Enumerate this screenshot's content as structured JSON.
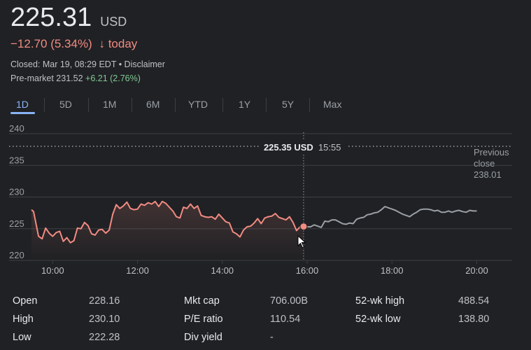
{
  "quote": {
    "price": "225.31",
    "currency": "USD",
    "change": "−12.70 (5.34%)",
    "change_arrow": "↓",
    "change_period": "today",
    "closed_text": "Closed: Mar 19, 08:29 EDT • Disclaimer",
    "premarket_label": "Pre-market 231.52",
    "premarket_change": "+6.21 (2.76%)"
  },
  "tabs": [
    {
      "label": "1D",
      "active": true
    },
    {
      "label": "5D"
    },
    {
      "label": "1M"
    },
    {
      "label": "6M"
    },
    {
      "label": "YTD"
    },
    {
      "label": "1Y"
    },
    {
      "label": "5Y"
    },
    {
      "label": "Max"
    }
  ],
  "chart_data": {
    "type": "line",
    "y_ticks": [
      "240",
      "235",
      "230",
      "225",
      "220"
    ],
    "x_ticks": [
      "10:00",
      "12:00",
      "14:00",
      "16:00",
      "18:00",
      "20:00"
    ],
    "ylim": [
      220,
      240
    ],
    "xlim": [
      "09:30",
      "20:50"
    ],
    "previous_close": 238.01,
    "previous_close_label": [
      "Previous",
      "close",
      "238.01"
    ],
    "hover_label": {
      "price": "225.35 USD",
      "time": "15:55"
    },
    "colors": {
      "regular": "#f28b82",
      "extended": "#9aa0a6",
      "grid": "#3c4043",
      "bg": "#202124"
    },
    "series": [
      {
        "name": "regular",
        "points": [
          [
            "09:30",
            228
          ],
          [
            "09:33",
            227.7
          ],
          [
            "09:40",
            223.8
          ],
          [
            "09:45",
            223.4
          ],
          [
            "09:50",
            225.1
          ],
          [
            "09:55",
            224.3
          ],
          [
            "10:00",
            223.8
          ],
          [
            "10:05",
            224.4
          ],
          [
            "10:10",
            224.6
          ],
          [
            "10:15",
            223.0
          ],
          [
            "10:20",
            223.6
          ],
          [
            "10:25",
            222.8
          ],
          [
            "10:30",
            223.1
          ],
          [
            "10:35",
            225.1
          ],
          [
            "10:40",
            225.0
          ],
          [
            "10:45",
            226.0
          ],
          [
            "10:50",
            225.5
          ],
          [
            "10:55",
            224.2
          ],
          [
            "11:00",
            224.0
          ],
          [
            "11:05",
            224.8
          ],
          [
            "11:10",
            224.9
          ],
          [
            "11:15",
            224.3
          ],
          [
            "11:20",
            224.8
          ],
          [
            "11:25",
            227.3
          ],
          [
            "11:30",
            228.8
          ],
          [
            "11:35",
            228.2
          ],
          [
            "11:40",
            228.6
          ],
          [
            "11:45",
            229.2
          ],
          [
            "11:50",
            228.2
          ],
          [
            "11:55",
            228.0
          ],
          [
            "12:00",
            228.1
          ],
          [
            "12:05",
            228.9
          ],
          [
            "12:10",
            228.7
          ],
          [
            "12:15",
            229.1
          ],
          [
            "12:20",
            228.9
          ],
          [
            "12:25",
            229.3
          ],
          [
            "12:30",
            228.5
          ],
          [
            "12:35",
            229.3
          ],
          [
            "12:40",
            229.0
          ],
          [
            "12:45",
            228.4
          ],
          [
            "12:50",
            227.8
          ],
          [
            "12:55",
            226.9
          ],
          [
            "13:00",
            226.7
          ],
          [
            "13:05",
            228.4
          ],
          [
            "13:10",
            228.2
          ],
          [
            "13:15",
            228.9
          ],
          [
            "13:20",
            228.2
          ],
          [
            "13:25",
            228.6
          ],
          [
            "13:30",
            227.1
          ],
          [
            "13:35",
            226.9
          ],
          [
            "13:40",
            226.8
          ],
          [
            "13:45",
            226.9
          ],
          [
            "13:50",
            226.5
          ],
          [
            "13:55",
            227.3
          ],
          [
            "14:00",
            226.7
          ],
          [
            "14:05",
            226.1
          ],
          [
            "14:10",
            225.9
          ],
          [
            "14:15",
            224.5
          ],
          [
            "14:20",
            224.2
          ],
          [
            "14:25",
            223.7
          ],
          [
            "14:30",
            224.8
          ],
          [
            "14:35",
            225.3
          ],
          [
            "14:40",
            225.4
          ],
          [
            "14:45",
            225.9
          ],
          [
            "14:50",
            226.6
          ],
          [
            "14:55",
            225.8
          ],
          [
            "15:00",
            226.7
          ],
          [
            "15:05",
            226.9
          ],
          [
            "15:10",
            227.0
          ],
          [
            "15:15",
            227.4
          ],
          [
            "15:20",
            226.8
          ],
          [
            "15:25",
            226.6
          ],
          [
            "15:30",
            226.4
          ],
          [
            "15:35",
            226.9
          ],
          [
            "15:40",
            226.0
          ],
          [
            "15:45",
            224.7
          ],
          [
            "15:50",
            225.3
          ],
          [
            "15:55",
            225.35
          ]
        ]
      },
      {
        "name": "extended",
        "points": [
          [
            "15:55",
            225.35
          ],
          [
            "16:00",
            225.3
          ],
          [
            "16:05",
            225.3
          ],
          [
            "16:10",
            225.6
          ],
          [
            "16:15",
            225.4
          ],
          [
            "16:20",
            225.2
          ],
          [
            "16:25",
            226.2
          ],
          [
            "16:30",
            226.1
          ],
          [
            "16:35",
            226.4
          ],
          [
            "16:40",
            226.4
          ],
          [
            "16:45",
            226.1
          ],
          [
            "16:50",
            225.8
          ],
          [
            "16:55",
            225.7
          ],
          [
            "17:00",
            225.9
          ],
          [
            "17:05",
            225.8
          ],
          [
            "17:10",
            226.5
          ],
          [
            "17:15",
            226.7
          ],
          [
            "17:20",
            226.8
          ],
          [
            "17:25",
            227.2
          ],
          [
            "17:30",
            227.3
          ],
          [
            "17:35",
            227.5
          ],
          [
            "17:40",
            227.6
          ],
          [
            "17:45",
            228.0
          ],
          [
            "17:50",
            228.5
          ],
          [
            "17:55",
            228.3
          ],
          [
            "18:00",
            228.1
          ],
          [
            "18:05",
            227.9
          ],
          [
            "18:10",
            227.6
          ],
          [
            "18:15",
            227.3
          ],
          [
            "18:20",
            227.1
          ],
          [
            "18:25",
            226.9
          ],
          [
            "18:30",
            227.3
          ],
          [
            "18:35",
            227.6
          ],
          [
            "18:40",
            228.0
          ],
          [
            "18:45",
            228.1
          ],
          [
            "18:50",
            228.1
          ],
          [
            "18:55",
            228.0
          ],
          [
            "19:00",
            227.8
          ],
          [
            "19:05",
            227.9
          ],
          [
            "19:10",
            227.6
          ],
          [
            "19:15",
            227.6
          ],
          [
            "19:20",
            227.8
          ],
          [
            "19:25",
            227.6
          ],
          [
            "19:30",
            227.8
          ],
          [
            "19:35",
            227.9
          ],
          [
            "19:40",
            227.7
          ],
          [
            "19:45",
            227.6
          ],
          [
            "19:50",
            227.9
          ],
          [
            "19:55",
            227.8
          ],
          [
            "20:00",
            227.8
          ]
        ]
      }
    ]
  },
  "stats": [
    {
      "label": "Open",
      "value": "228.16"
    },
    {
      "label": "High",
      "value": "230.10"
    },
    {
      "label": "Low",
      "value": "222.28"
    },
    {
      "label": "Mkt cap",
      "value": "706.00B"
    },
    {
      "label": "P/E ratio",
      "value": "110.54"
    },
    {
      "label": "Div yield",
      "value": "-"
    },
    {
      "label": "52-wk high",
      "value": "488.54"
    },
    {
      "label": "52-wk low",
      "value": "138.80"
    }
  ]
}
